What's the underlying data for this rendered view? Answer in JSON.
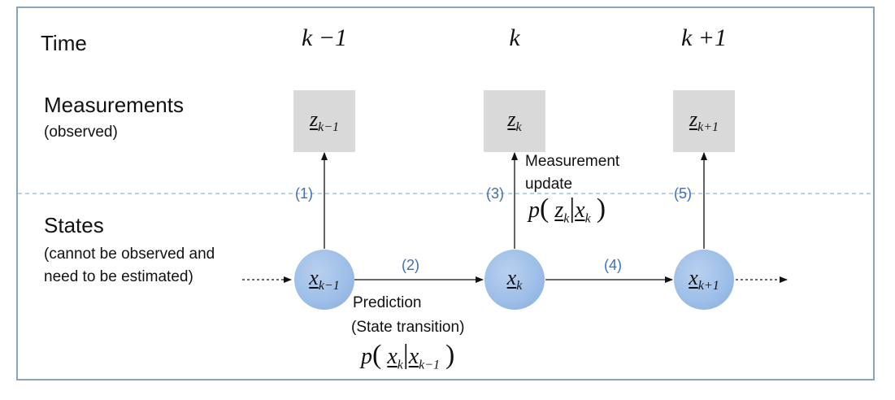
{
  "left_labels": {
    "time": "Time",
    "measurements": "Measurements",
    "observed": "(observed)",
    "states": "States",
    "states_note_line1": "(cannot be observed and",
    "states_note_line2": "need to be estimated)"
  },
  "time_steps": [
    "k −1",
    "k",
    "k +1"
  ],
  "measurements": [
    {
      "var": "z",
      "sub": "k−1"
    },
    {
      "var": "z",
      "sub": "k"
    },
    {
      "var": "z",
      "sub": "k+1"
    }
  ],
  "states": [
    {
      "var": "x",
      "sub": "k−1"
    },
    {
      "var": "x",
      "sub": "k"
    },
    {
      "var": "x",
      "sub": "k+1"
    }
  ],
  "step_numbers": [
    "(1)",
    "(2)",
    "(3)",
    "(4)",
    "(5)"
  ],
  "measurement_update": {
    "line1": "Measurement",
    "line2": "update",
    "p": "p",
    "z": "z",
    "z_sub": "k",
    "x": "x",
    "x_sub": "k"
  },
  "prediction": {
    "line1": "Prediction",
    "line2": "(State transition)",
    "p": "p",
    "x": "x",
    "x_sub": "k",
    "x_prev": "x",
    "x_prev_sub": "k−1"
  },
  "colors": {
    "frame": "#8aa4bd",
    "state_fill": "#9ebfe8",
    "measurement_fill": "#d9d9d9",
    "step_number": "#3f6fb5",
    "divider": "#a9c3db"
  }
}
